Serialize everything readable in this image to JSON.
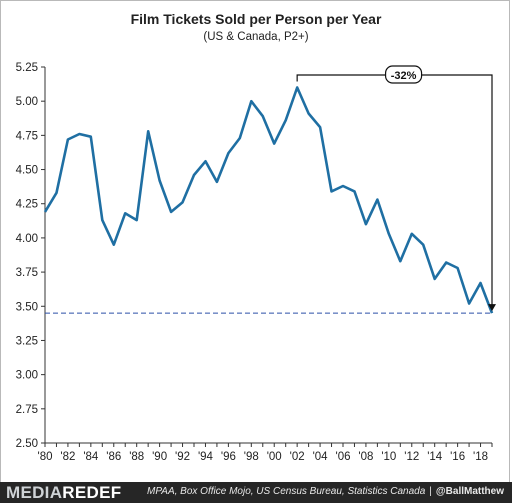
{
  "chart_data": {
    "type": "line",
    "title": "Film Tickets Sold per Person per Year",
    "subtitle": "(US & Canada, P2+)",
    "xlabel": "",
    "ylabel": "",
    "x": [
      1980,
      1981,
      1982,
      1983,
      1984,
      1985,
      1986,
      1987,
      1988,
      1989,
      1990,
      1991,
      1992,
      1993,
      1994,
      1995,
      1996,
      1997,
      1998,
      1999,
      2000,
      2001,
      2002,
      2003,
      2004,
      2005,
      2006,
      2007,
      2008,
      2009,
      2010,
      2011,
      2012,
      2013,
      2014,
      2015,
      2016,
      2017,
      2018,
      2019
    ],
    "series": [
      {
        "values": [
          4.19,
          4.33,
          4.72,
          4.76,
          4.74,
          4.13,
          3.95,
          4.18,
          4.13,
          4.78,
          4.42,
          4.19,
          4.26,
          4.46,
          4.56,
          4.41,
          4.62,
          4.73,
          5.0,
          4.89,
          4.69,
          4.86,
          5.1,
          4.91,
          4.81,
          4.34,
          4.38,
          4.34,
          4.1,
          4.28,
          4.03,
          3.83,
          4.03,
          3.95,
          3.7,
          3.82,
          3.78,
          3.52,
          3.67,
          3.45
        ],
        "color": "#1f6fa3"
      }
    ],
    "xlim": [
      1980,
      2019
    ],
    "ylim": [
      2.5,
      5.25
    ],
    "y_ticks": [
      "2.50",
      "2.75",
      "3.00",
      "3.25",
      "3.50",
      "3.75",
      "4.00",
      "4.25",
      "4.50",
      "4.75",
      "5.00",
      "5.25"
    ],
    "x_ticks": [
      "'80",
      "'82",
      "'84",
      "'86",
      "'88",
      "'90",
      "'92",
      "'94",
      "'96",
      "'98",
      "'00",
      "'02",
      "'04",
      "'06",
      "'08",
      "'10",
      "'12",
      "'14",
      "'16",
      "'18"
    ],
    "x_tick_years": [
      1980,
      1982,
      1984,
      1986,
      1988,
      1990,
      1992,
      1994,
      1996,
      1998,
      2000,
      2002,
      2004,
      2006,
      2008,
      2010,
      2012,
      2014,
      2016,
      2018
    ],
    "reference_line": {
      "y": 3.45,
      "style": "dashed",
      "color": "#2b4fa8"
    },
    "annotation": {
      "text": "-32%",
      "from_x": 2002,
      "to_x": 2019
    },
    "grid": false,
    "legend": "none"
  },
  "footer": {
    "brand_light": "MEDIA",
    "brand_dark": "REDEF",
    "sources": "MPAA, Box Office Mojo, US Census Bureau, Statistics Canada",
    "separator": "|",
    "handle": "@BallMatthew"
  }
}
